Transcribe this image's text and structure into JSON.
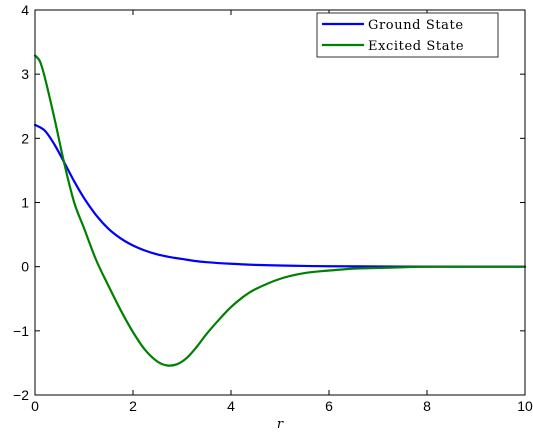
{
  "chart_data": {
    "type": "line",
    "title": "",
    "xlabel": "r",
    "ylabel": "",
    "xlim": [
      0,
      10
    ],
    "ylim": [
      -2,
      4
    ],
    "xticks": [
      0,
      2,
      4,
      6,
      8,
      10
    ],
    "yticks": [
      -2,
      -1,
      0,
      1,
      2,
      3,
      4
    ],
    "legend_position": "top-right",
    "grid": false,
    "series": [
      {
        "name": "Ground State",
        "color": "#0000ff",
        "x": [
          0,
          0.2,
          0.4,
          0.6,
          0.8,
          1.0,
          1.25,
          1.5,
          1.75,
          2.0,
          2.25,
          2.5,
          2.75,
          3.0,
          3.25,
          3.5,
          4.0,
          4.5,
          5.0,
          5.5,
          6.0,
          7.0,
          8.0,
          9.0,
          10.0
        ],
        "y": [
          2.21,
          2.12,
          1.9,
          1.62,
          1.33,
          1.07,
          0.8,
          0.59,
          0.44,
          0.33,
          0.25,
          0.19,
          0.15,
          0.12,
          0.09,
          0.07,
          0.045,
          0.028,
          0.018,
          0.011,
          0.007,
          0.003,
          0.001,
          0.0,
          0.0
        ]
      },
      {
        "name": "Excited State",
        "color": "#008000",
        "x": [
          0,
          0.1,
          0.2,
          0.4,
          0.6,
          0.8,
          1.0,
          1.25,
          1.5,
          1.75,
          2.0,
          2.25,
          2.5,
          2.7,
          2.9,
          3.1,
          3.3,
          3.5,
          3.75,
          4.0,
          4.25,
          4.5,
          5.0,
          5.5,
          6.0,
          6.5,
          7.0,
          7.5,
          8.0,
          9.0,
          10.0
        ],
        "y": [
          3.29,
          3.2,
          2.95,
          2.3,
          1.6,
          1.0,
          0.6,
          0.1,
          -0.3,
          -0.68,
          -1.02,
          -1.3,
          -1.48,
          -1.54,
          -1.52,
          -1.42,
          -1.25,
          -1.05,
          -0.83,
          -0.63,
          -0.47,
          -0.35,
          -0.19,
          -0.1,
          -0.06,
          -0.03,
          -0.02,
          -0.01,
          0.0,
          0.0,
          0.0
        ]
      }
    ]
  }
}
